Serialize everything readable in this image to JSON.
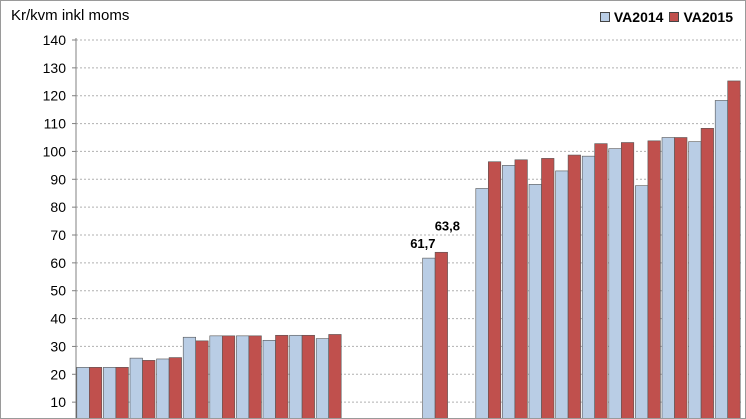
{
  "chart_data": {
    "type": "bar",
    "ylabel": "Kr/kvm inkl moms",
    "ylim": [
      0,
      140
    ],
    "yticks": [
      10,
      20,
      30,
      40,
      50,
      60,
      70,
      80,
      90,
      100,
      110,
      120,
      130,
      140
    ],
    "grid": true,
    "legend_position": "top-right",
    "categories": [
      "",
      "",
      "",
      "",
      "",
      "",
      "",
      "",
      "",
      "",
      "",
      "",
      "",
      "",
      "",
      "",
      "",
      "",
      "",
      "",
      "",
      "",
      "",
      "",
      ""
    ],
    "series": [
      {
        "name": "VA2014",
        "color": "#b9cde5",
        "values": [
          22.5,
          22.5,
          25.8,
          25.5,
          33.3,
          33.8,
          33.8,
          32.2,
          34.0,
          32.8,
          null,
          null,
          null,
          61.7,
          null,
          86.7,
          95.0,
          88.2,
          93.0,
          98.3,
          101.0,
          87.7,
          105.0,
          103.5,
          118.3
        ]
      },
      {
        "name": "VA2015",
        "color": "#c0504d",
        "values": [
          22.5,
          22.5,
          25.0,
          26.0,
          32.0,
          33.8,
          33.8,
          34.0,
          34.0,
          34.3,
          null,
          null,
          null,
          63.8,
          null,
          96.3,
          97.0,
          97.5,
          98.7,
          102.8,
          103.2,
          103.8,
          105.0,
          108.3,
          125.3
        ]
      }
    ],
    "data_labels": [
      {
        "text": "61,7",
        "series": 0,
        "index": 13
      },
      {
        "text": "63,8",
        "series": 1,
        "index": 13
      }
    ]
  }
}
